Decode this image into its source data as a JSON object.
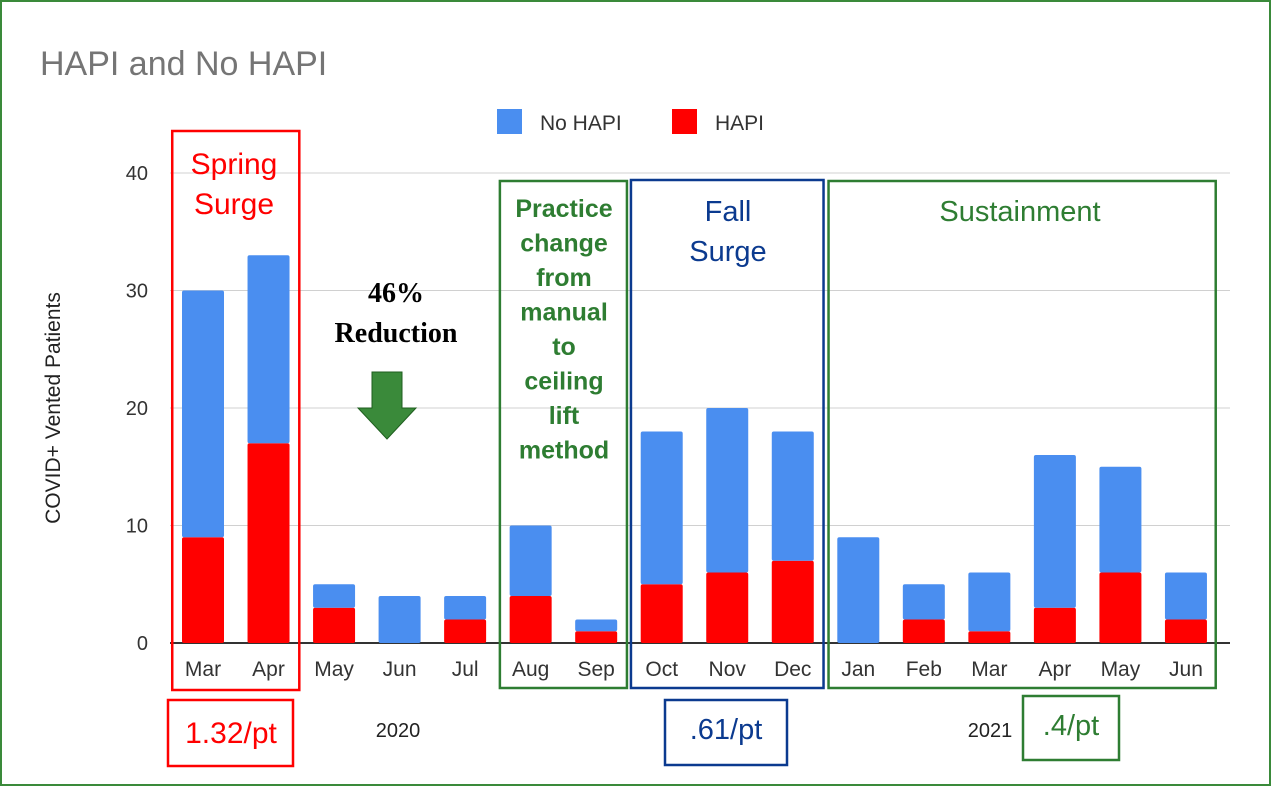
{
  "chart_data": {
    "type": "bar",
    "stacked": true,
    "title": "HAPI and No HAPI",
    "ylabel": "COVID+ Vented Patients",
    "xlabel": "",
    "ylim": [
      0,
      40
    ],
    "yticks": [
      0,
      10,
      20,
      30,
      40
    ],
    "grid": true,
    "legend_position": "top",
    "categories": [
      "Mar",
      "Apr",
      "May",
      "Jun",
      "Jul",
      "Aug",
      "Sep",
      "Oct",
      "Nov",
      "Dec",
      "Jan",
      "Feb",
      "Mar",
      "Apr",
      "May",
      "Jun"
    ],
    "year_labels": [
      {
        "label": "2020",
        "from": 0,
        "to": 9
      },
      {
        "label": "2021",
        "from": 10,
        "to": 15
      }
    ],
    "series": [
      {
        "name": "HAPI",
        "color": "#ff0000",
        "values": [
          9,
          17,
          3,
          0,
          2,
          4,
          1,
          5,
          6,
          7,
          0,
          2,
          1,
          3,
          6,
          2
        ]
      },
      {
        "name": "No HAPI",
        "color": "#4a8ef0",
        "values": [
          21,
          16,
          2,
          4,
          2,
          6,
          1,
          13,
          14,
          11,
          9,
          3,
          5,
          13,
          9,
          4
        ]
      }
    ],
    "legend_order": [
      "No HAPI",
      "HAPI"
    ],
    "annotations": {
      "spring": {
        "lines": [
          "Spring",
          "Surge"
        ],
        "color": "#ff0000",
        "rate": "1.32/pt",
        "from": 0,
        "to": 1
      },
      "reduction": {
        "lines": [
          "46%",
          "Reduction"
        ],
        "color": "#000000",
        "arrow_color": "#3a8a3a"
      },
      "practice": {
        "lines": [
          "Practice",
          "change",
          "from",
          "manual",
          "to",
          "ceiling",
          "lift",
          "method"
        ],
        "color": "#2e7d32",
        "from": 5,
        "to": 6
      },
      "fall": {
        "lines": [
          "Fall",
          "Surge"
        ],
        "color": "#0b3a8f",
        "rate": ".61/pt",
        "from": 7,
        "to": 9
      },
      "sustainment": {
        "lines": [
          "Sustainment"
        ],
        "color": "#2e7d32",
        "rate": ".4/pt",
        "from": 10,
        "to": 15
      }
    }
  }
}
